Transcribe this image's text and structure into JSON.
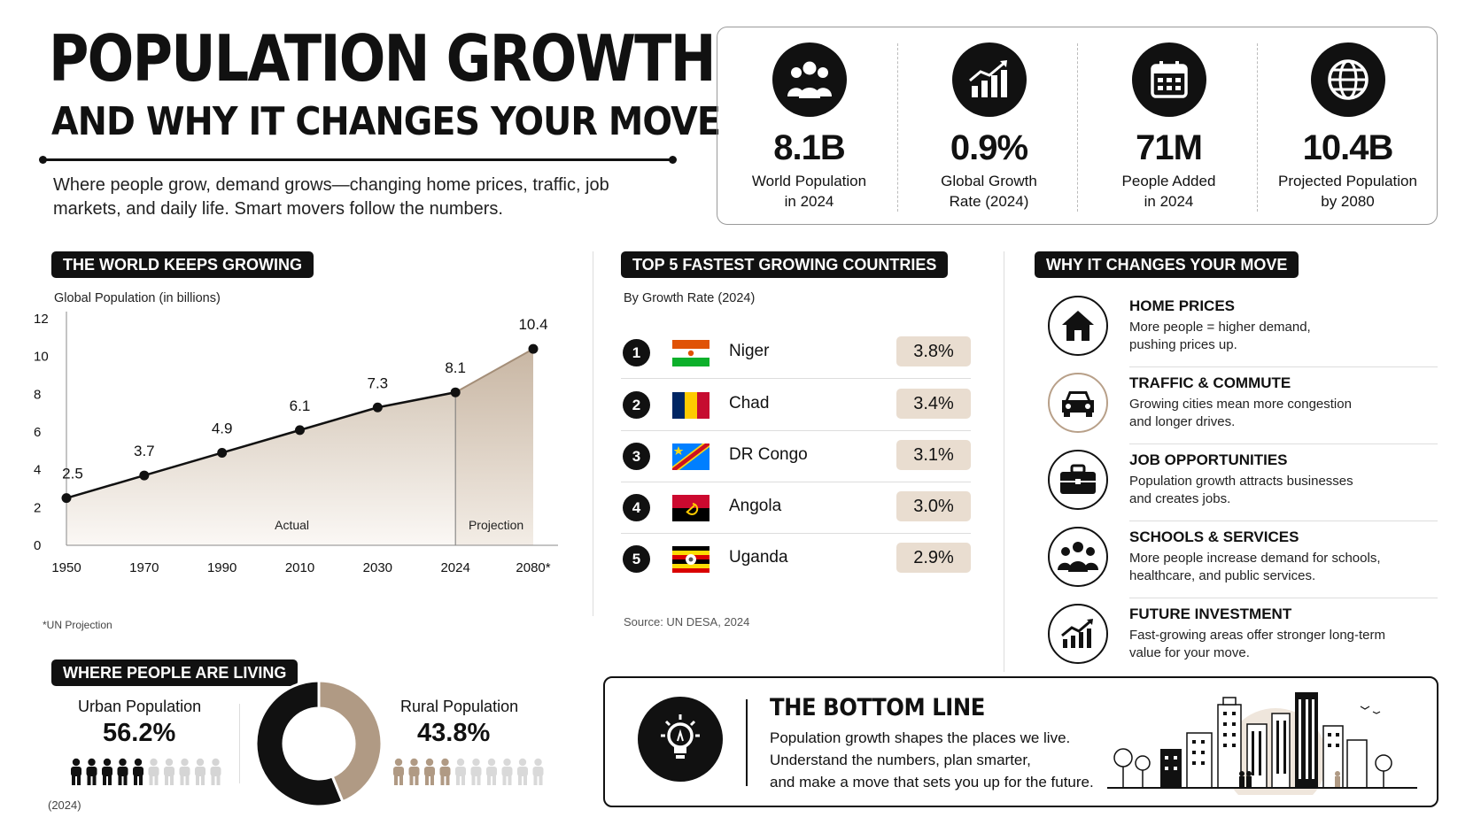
{
  "header": {
    "title_line1": "POPULATION GROWTH",
    "title_line2": "AND WHY IT CHANGES YOUR MOVE",
    "subtitle": "Where people grow, demand grows—changing home prices, traffic, job markets, and daily life. Smart movers follow the numbers."
  },
  "stats": [
    {
      "value": "8.1B",
      "label": "World Population\nin 2024",
      "icon": "people-group-icon"
    },
    {
      "value": "0.9%",
      "label": "Global Growth\nRate (2024)",
      "icon": "growth-chart-icon"
    },
    {
      "value": "71M",
      "label": "People Added\nin 2024",
      "icon": "calendar-icon"
    },
    {
      "value": "10.4B",
      "label": "Projected Population\nby 2080",
      "icon": "globe-icon"
    }
  ],
  "world_section": {
    "heading": "THE WORLD KEEPS GROWING",
    "footnote": "*UN Projection"
  },
  "chart_data": [
    {
      "type": "area",
      "title": "Global Population (in billions)",
      "x": [
        "1950",
        "1970",
        "1990",
        "2010",
        "2030",
        "2024",
        "2080*"
      ],
      "values": [
        2.5,
        3.7,
        4.9,
        6.1,
        7.3,
        8.1,
        10.4
      ],
      "data_labels": [
        "2.5",
        "3.7",
        "4.9",
        "6.1",
        "7.3",
        "8.1",
        "10.4"
      ],
      "yticks": [
        "0",
        "2",
        "4",
        "6",
        "8",
        "10",
        "12"
      ],
      "ylim": [
        0,
        12
      ],
      "regions": [
        "Actual",
        "Projection"
      ],
      "grid": false
    },
    {
      "type": "pie",
      "title": "WHERE PEOPLE ARE LIVING",
      "slices": [
        {
          "name": "Urban Population",
          "value": 56.2,
          "label": "56.2%",
          "color": "#111111"
        },
        {
          "name": "Rural Population",
          "value": 43.8,
          "label": "43.8%",
          "color": "#b09a84"
        }
      ],
      "note": "(2024)"
    },
    {
      "type": "table",
      "title": "TOP 5 FASTEST GROWING COUNTRIES",
      "subtitle": "By Growth Rate (2024)",
      "rows": [
        {
          "rank": "1",
          "country": "Niger",
          "rate": "3.8%"
        },
        {
          "rank": "2",
          "country": "Chad",
          "rate": "3.4%"
        },
        {
          "rank": "3",
          "country": "DR Congo",
          "rate": "3.1%"
        },
        {
          "rank": "4",
          "country": "Angola",
          "rate": "3.0%"
        },
        {
          "rank": "5",
          "country": "Uganda",
          "rate": "2.9%"
        }
      ],
      "source": "Source: UN DESA, 2024"
    }
  ],
  "why": {
    "heading": "WHY IT CHANGES YOUR MOVE",
    "items": [
      {
        "title": "HOME PRICES",
        "desc": "More people = higher demand,\npushing prices up.",
        "icon": "house-icon"
      },
      {
        "title": "TRAFFIC & COMMUTE",
        "desc": "Growing cities mean more congestion\nand longer drives.",
        "icon": "car-icon"
      },
      {
        "title": "JOB OPPORTUNITIES",
        "desc": "Population growth attracts businesses\nand creates jobs.",
        "icon": "briefcase-icon"
      },
      {
        "title": "SCHOOLS & SERVICES",
        "desc": "More people increase demand for schools,\nhealthcare, and public services.",
        "icon": "people-icon"
      },
      {
        "title": "FUTURE INVESTMENT",
        "desc": "Fast-growing areas offer stronger long-term\nvalue for your move.",
        "icon": "trend-up-icon"
      }
    ]
  },
  "bottom_line": {
    "title": "THE BOTTOM LINE",
    "text": "Population growth shapes the places we live.\nUnderstand the numbers, plan smarter,\nand make a move that sets you up for the future."
  },
  "colors": {
    "accent": "#111111",
    "beige": "#b09a84",
    "beige_light": "#e9ddd0"
  }
}
